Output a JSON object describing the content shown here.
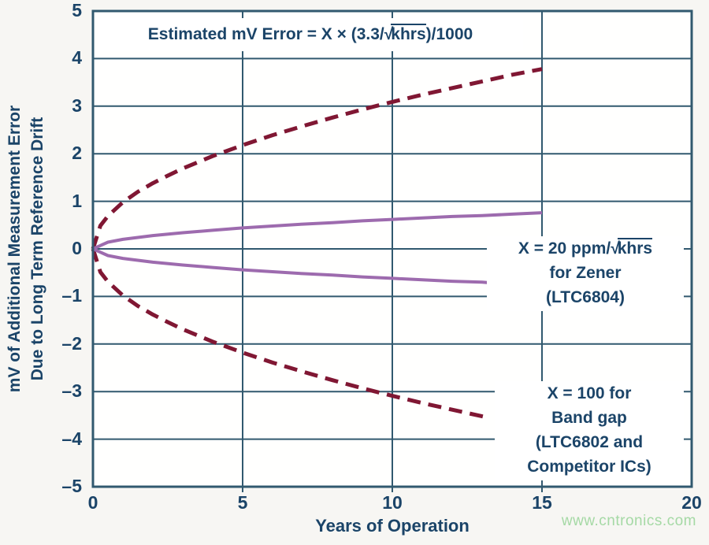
{
  "watermark": "www.cntronics.com",
  "colors": {
    "text": "#1b4468",
    "grid": "#31596f",
    "plot_bg": "#fffffe",
    "canvas_bg": "#f7f6f3",
    "bandgap_curve": "#801733",
    "zener_curve": "#9d6bae",
    "watermark": "#a5d9a5"
  },
  "chart_data": {
    "type": "line",
    "formula_annotation": {
      "prefix": "Estimated mV Error = X × (3.3/",
      "radical": "√",
      "radicand": "khrs",
      "suffix": ")/1000"
    },
    "xlabel": "Years of Operation",
    "ylabel_line1": "mV of Additional Measurement Error",
    "ylabel_line2": "Due to Long Term Reference Drift",
    "xlim": [
      0,
      20
    ],
    "ylim": [
      -5,
      5
    ],
    "grid": true,
    "legend": "none",
    "xticks": [
      {
        "v": 0,
        "label": "0"
      },
      {
        "v": 5,
        "label": "5"
      },
      {
        "v": 10,
        "label": "10"
      },
      {
        "v": 15,
        "label": "15"
      },
      {
        "v": 20,
        "label": "20"
      }
    ],
    "yticks": [
      {
        "v": 5,
        "label": "5"
      },
      {
        "v": 4,
        "label": "4"
      },
      {
        "v": 3,
        "label": "3"
      },
      {
        "v": 2,
        "label": "2"
      },
      {
        "v": 1,
        "label": "1"
      },
      {
        "v": 0,
        "label": "0"
      },
      {
        "v": -1,
        "label": "–1"
      },
      {
        "v": -2,
        "label": "–2"
      },
      {
        "v": -3,
        "label": "–3"
      },
      {
        "v": -4,
        "label": "–4"
      },
      {
        "v": -5,
        "label": "–5"
      }
    ],
    "series": [
      {
        "name": "bandgap-upper",
        "group": "X = 100 (Band gap, LTC6802 and Competitor ICs)",
        "style": "dashed",
        "color": "#801733",
        "width": 5,
        "dash": "17 10",
        "points": [
          [
            0,
            0
          ],
          [
            0.25,
            0.49
          ],
          [
            0.5,
            0.69
          ],
          [
            1,
            0.98
          ],
          [
            1.5,
            1.2
          ],
          [
            2,
            1.38
          ],
          [
            2.5,
            1.54
          ],
          [
            3,
            1.69
          ],
          [
            4,
            1.95
          ],
          [
            5,
            2.18
          ],
          [
            6,
            2.39
          ],
          [
            7,
            2.58
          ],
          [
            8,
            2.76
          ],
          [
            9,
            2.93
          ],
          [
            10,
            3.09
          ],
          [
            11,
            3.24
          ],
          [
            12,
            3.38
          ],
          [
            13,
            3.52
          ],
          [
            14,
            3.66
          ],
          [
            15,
            3.78
          ]
        ]
      },
      {
        "name": "bandgap-lower",
        "group": "X = 100 (Band gap, LTC6802 and Competitor ICs)",
        "style": "dashed",
        "color": "#801733",
        "width": 5,
        "dash": "17 10",
        "points": [
          [
            0,
            0
          ],
          [
            0.25,
            -0.49
          ],
          [
            0.5,
            -0.69
          ],
          [
            1,
            -0.98
          ],
          [
            1.5,
            -1.2
          ],
          [
            2,
            -1.38
          ],
          [
            2.5,
            -1.54
          ],
          [
            3,
            -1.69
          ],
          [
            4,
            -1.95
          ],
          [
            5,
            -2.18
          ],
          [
            6,
            -2.39
          ],
          [
            7,
            -2.58
          ],
          [
            8,
            -2.76
          ],
          [
            9,
            -2.93
          ],
          [
            10,
            -3.09
          ],
          [
            11,
            -3.24
          ],
          [
            12,
            -3.38
          ],
          [
            13,
            -3.52
          ],
          [
            13.2,
            -3.55
          ]
        ]
      },
      {
        "name": "zener-upper",
        "group": "X = 20 ppm/√khrs (Zener, LTC6804)",
        "style": "solid",
        "color": "#9d6bae",
        "width": 4,
        "dash": "",
        "points": [
          [
            0,
            0
          ],
          [
            0.5,
            0.14
          ],
          [
            1,
            0.2
          ],
          [
            2,
            0.28
          ],
          [
            3,
            0.34
          ],
          [
            4,
            0.39
          ],
          [
            5,
            0.44
          ],
          [
            6,
            0.48
          ],
          [
            7,
            0.52
          ],
          [
            8,
            0.55
          ],
          [
            9,
            0.59
          ],
          [
            10,
            0.62
          ],
          [
            11,
            0.65
          ],
          [
            12,
            0.68
          ],
          [
            13,
            0.7
          ],
          [
            14,
            0.73
          ],
          [
            15,
            0.76
          ]
        ]
      },
      {
        "name": "zener-lower",
        "group": "X = 20 ppm/√khrs (Zener, LTC6804)",
        "style": "solid",
        "color": "#9d6bae",
        "width": 4,
        "dash": "",
        "points": [
          [
            0,
            0
          ],
          [
            0.5,
            -0.14
          ],
          [
            1,
            -0.2
          ],
          [
            2,
            -0.28
          ],
          [
            3,
            -0.34
          ],
          [
            4,
            -0.39
          ],
          [
            5,
            -0.44
          ],
          [
            6,
            -0.48
          ],
          [
            7,
            -0.52
          ],
          [
            8,
            -0.55
          ],
          [
            9,
            -0.59
          ],
          [
            10,
            -0.62
          ],
          [
            11,
            -0.65
          ],
          [
            12,
            -0.68
          ],
          [
            13,
            -0.7
          ],
          [
            13.2,
            -0.71
          ]
        ]
      }
    ],
    "annotations": {
      "zener": {
        "line1_prefix": "X = 20 ppm/",
        "radical": "√",
        "line1_radicand": "khrs",
        "line2": "for Zener",
        "line3": "(LTC6804)"
      },
      "bandgap": {
        "lines": [
          "X = 100 for",
          "Band gap",
          "(LTC6802 and",
          "Competitor ICs)"
        ]
      }
    }
  }
}
